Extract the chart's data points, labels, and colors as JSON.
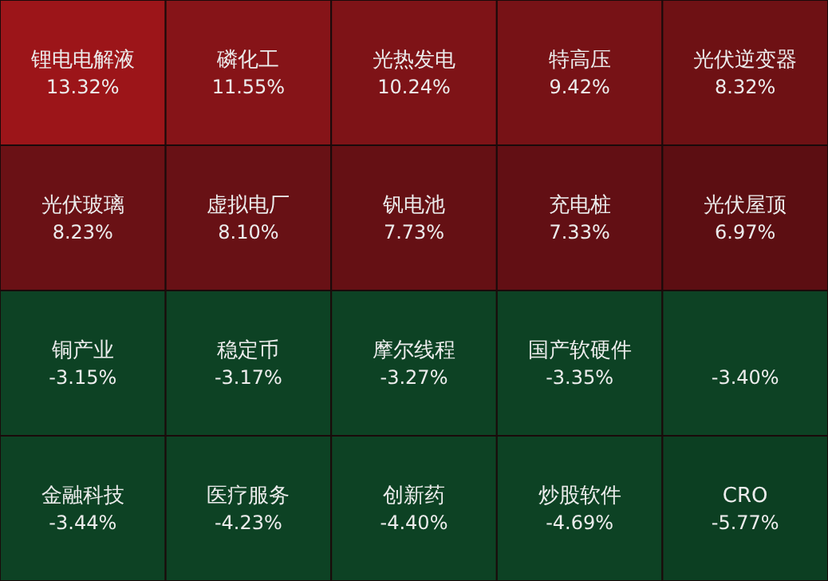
{
  "chart_data": {
    "type": "other",
    "categories": [
      "锂电电解液",
      "磷化工",
      "光热发电",
      "特高压",
      "光伏逆变器",
      "光伏玻璃",
      "虚拟电厂",
      "钒电池",
      "充电桩",
      "光伏屋顶",
      "铜产业",
      "稳定币",
      "摩尔线程",
      "国产软硬件",
      null,
      "金融科技",
      "医疗服务",
      "创新药",
      "炒股软件",
      "CRO"
    ],
    "values": [
      13.32,
      11.55,
      10.24,
      9.42,
      8.32,
      8.23,
      8.1,
      7.73,
      7.33,
      6.97,
      -3.15,
      -3.17,
      -3.27,
      -3.35,
      -3.4,
      -3.44,
      -4.23,
      -4.4,
      -4.69,
      -5.77
    ],
    "value_labels": [
      "13.32%",
      "11.55%",
      "10.24%",
      "9.42%",
      "8.32%",
      "8.23%",
      "8.10%",
      "7.73%",
      "7.33%",
      "6.97%",
      "-3.15%",
      "-3.17%",
      "-3.27%",
      "-3.35%",
      "-3.40%",
      "-3.44%",
      "-4.23%",
      "-4.40%",
      "-4.69%",
      "-5.77%"
    ],
    "colors": [
      "#9c1519",
      "#861418",
      "#7e1317",
      "#771216",
      "#6e1114",
      "#6a1115",
      "#681115",
      "#651014",
      "#620f14",
      "#5c0e12",
      "#0d4224",
      "#0d4224",
      "#0d4224",
      "#0d4224",
      "#0d4224",
      "#0d4224",
      "#0d4224",
      "#0d4224",
      "#0d4224",
      "#0c3f22"
    ]
  }
}
